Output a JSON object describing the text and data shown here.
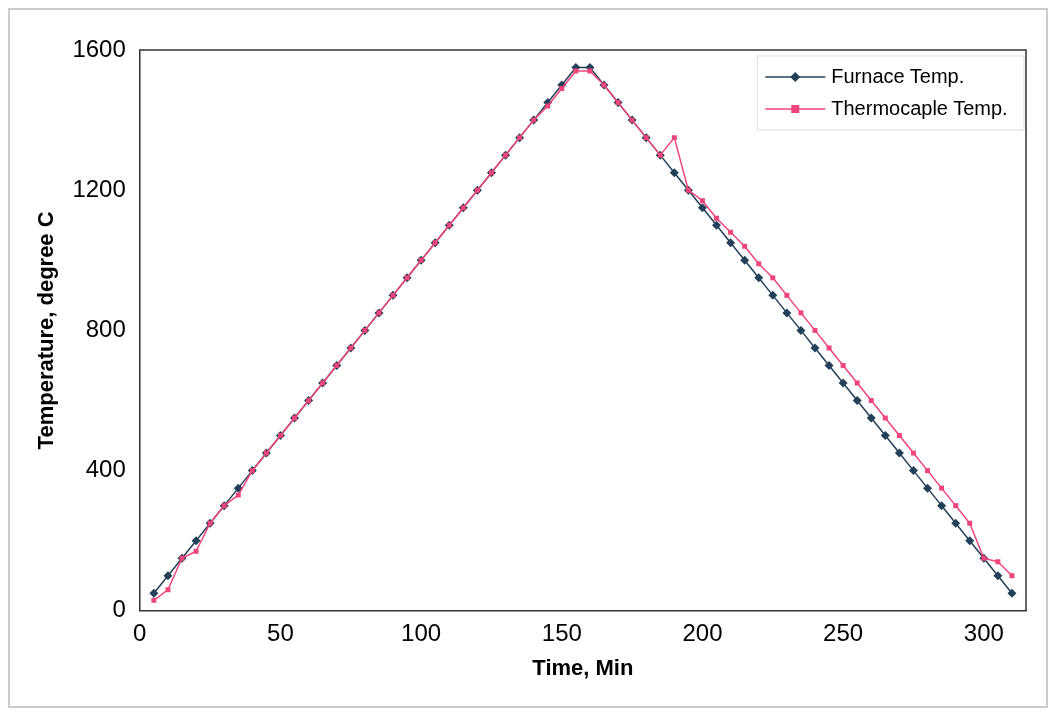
{
  "chart_data": {
    "type": "line",
    "xlabel": "Time, Min",
    "ylabel": "Temperature, degree C",
    "x": [
      5,
      10,
      15,
      20,
      25,
      30,
      35,
      40,
      45,
      50,
      55,
      60,
      65,
      70,
      75,
      80,
      85,
      90,
      95,
      100,
      105,
      110,
      115,
      120,
      125,
      130,
      135,
      140,
      145,
      150,
      155,
      160,
      165,
      170,
      175,
      180,
      185,
      190,
      195,
      200,
      205,
      210,
      215,
      220,
      225,
      230,
      235,
      240,
      245,
      250,
      255,
      260,
      265,
      270,
      275,
      280,
      285,
      290,
      295,
      300,
      305,
      310
    ],
    "series": [
      {
        "name": "Furnace Temp.",
        "color": "#23405a",
        "marker": "diamond",
        "values": [
          50,
          100,
          150,
          200,
          250,
          300,
          350,
          400,
          450,
          500,
          550,
          600,
          650,
          700,
          750,
          800,
          850,
          900,
          950,
          1000,
          1050,
          1100,
          1150,
          1200,
          1250,
          1300,
          1350,
          1400,
          1450,
          1500,
          1550,
          1550,
          1500,
          1450,
          1400,
          1350,
          1300,
          1250,
          1200,
          1150,
          1100,
          1050,
          1000,
          950,
          900,
          850,
          800,
          750,
          700,
          650,
          600,
          550,
          500,
          450,
          400,
          350,
          300,
          250,
          200,
          150,
          100,
          50
        ]
      },
      {
        "name": "Thermocaple Temp.",
        "color": "#f0457a",
        "marker": "square",
        "values": [
          30,
          60,
          150,
          170,
          250,
          300,
          330,
          400,
          450,
          500,
          550,
          600,
          650,
          700,
          750,
          800,
          850,
          900,
          950,
          1000,
          1050,
          1100,
          1150,
          1200,
          1250,
          1300,
          1350,
          1400,
          1440,
          1490,
          1540,
          1540,
          1500,
          1450,
          1400,
          1350,
          1300,
          1350,
          1200,
          1170,
          1120,
          1080,
          1040,
          990,
          950,
          900,
          850,
          800,
          750,
          700,
          650,
          600,
          550,
          500,
          450,
          400,
          350,
          300,
          250,
          150,
          140,
          100
        ]
      }
    ],
    "xlim": [
      0,
      315
    ],
    "xticks": [
      0,
      50,
      100,
      150,
      200,
      250,
      300
    ],
    "ylim": [
      0,
      1600
    ],
    "yticks": [
      0,
      400,
      800,
      1200,
      1600
    ],
    "grid": false,
    "legend": "top right",
    "line_style": "solid"
  }
}
